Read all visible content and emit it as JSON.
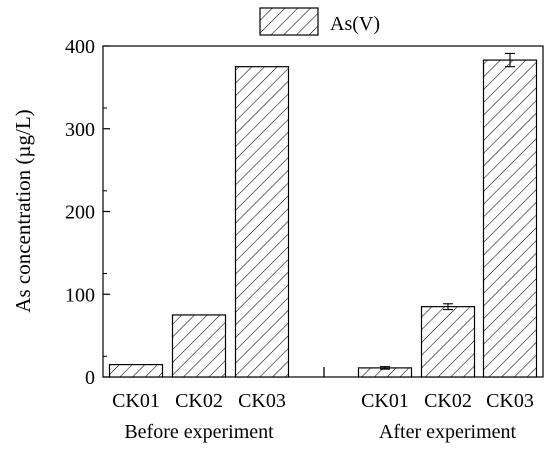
{
  "chart_data": {
    "type": "bar",
    "ylabel": "As concentration (µg/L)",
    "ylim": [
      0,
      400
    ],
    "yticks": [
      0,
      100,
      200,
      300,
      400
    ],
    "legend": {
      "placement": "top-center",
      "entries": [
        "As(V)"
      ]
    },
    "grid": false,
    "pattern": "diagonal-hatch",
    "groups": [
      {
        "label": "Before experiment",
        "categories": [
          "CK01",
          "CK02",
          "CK03"
        ],
        "values": [
          15,
          75,
          375
        ],
        "errors": [
          0,
          0,
          0
        ]
      },
      {
        "label": "After experiment",
        "categories": [
          "CK01",
          "CK02",
          "CK03"
        ],
        "values": [
          11,
          85,
          383
        ],
        "errors": [
          1.5,
          3.5,
          8
        ]
      }
    ]
  }
}
